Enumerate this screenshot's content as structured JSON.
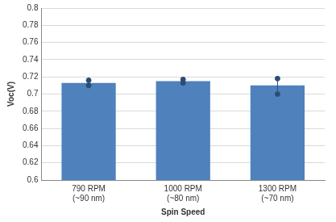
{
  "chart_data": {
    "type": "bar",
    "categories": [
      [
        "790 RPM",
        "(~90 nm)"
      ],
      [
        "1000 RPM",
        "(~80 nm)"
      ],
      [
        "1300 RPM",
        "(~70 nm)"
      ]
    ],
    "values": [
      0.713,
      0.715,
      0.71
    ],
    "error_bar_low": [
      0.71,
      0.713,
      0.7
    ],
    "error_bar_high": [
      0.716,
      0.717,
      0.718
    ],
    "color": "#4f81bd",
    "x_label": "Spin Speed",
    "y_label": "Voc(V)",
    "ylim": [
      0.6,
      0.8
    ],
    "yticks": [
      0.6,
      0.62,
      0.64,
      0.66,
      0.68,
      0.7,
      0.72,
      0.74,
      0.76,
      0.78,
      0.8
    ],
    "grid": true
  }
}
